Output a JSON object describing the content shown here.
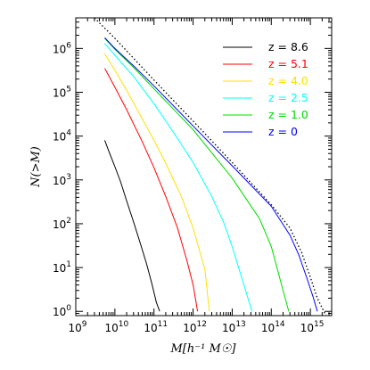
{
  "chart_data": {
    "type": "line",
    "xlabel": "M[h⁻¹ M☉]",
    "ylabel": "N(>M)",
    "x_scale": "log",
    "y_scale": "log",
    "xlim": [
      1000000000.0,
      3500000000000000.0
    ],
    "ylim": [
      0.8,
      5000000.0
    ],
    "x_ticks": [
      {
        "value": 1000000000.0,
        "base": "10",
        "exp": "9"
      },
      {
        "value": 10000000000.0,
        "base": "10",
        "exp": "10"
      },
      {
        "value": 100000000000.0,
        "base": "10",
        "exp": "11"
      },
      {
        "value": 1000000000000.0,
        "base": "10",
        "exp": "12"
      },
      {
        "value": 10000000000000.0,
        "base": "10",
        "exp": "13"
      },
      {
        "value": 100000000000000.0,
        "base": "10",
        "exp": "14"
      },
      {
        "value": 1000000000000000.0,
        "base": "10",
        "exp": "15"
      }
    ],
    "y_ticks": [
      {
        "value": 1,
        "base": "10",
        "exp": "0"
      },
      {
        "value": 10.0,
        "base": "10",
        "exp": "1"
      },
      {
        "value": 100.0,
        "base": "10",
        "exp": "2"
      },
      {
        "value": 1000.0,
        "base": "10",
        "exp": "3"
      },
      {
        "value": 10000.0,
        "base": "10",
        "exp": "4"
      },
      {
        "value": 100000.0,
        "base": "10",
        "exp": "5"
      },
      {
        "value": 1000000.0,
        "base": "10",
        "exp": "6"
      }
    ],
    "legend_position": "top-right",
    "series": [
      {
        "name": "z = 8.6",
        "color": "#000000",
        "style": "solid",
        "x": [
          5500000000.0,
          7000000000.0,
          10000000000.0,
          14000000000.0,
          20000000000.0,
          30000000000.0,
          45000000000.0,
          65000000000.0,
          90000000000.0,
          115000000000.0,
          140000000000.0
        ],
        "y": [
          8000,
          4500,
          2000,
          900,
          330,
          110,
          35,
          12,
          4,
          1.6,
          1
        ]
      },
      {
        "name": "z = 5.1",
        "color": "#ff0000",
        "style": "solid",
        "x": [
          5500000000.0,
          10000000000.0,
          20000000000.0,
          50000000000.0,
          100000000000.0,
          200000000000.0,
          400000000000.0,
          700000000000.0,
          1000000000000.0,
          1300000000000.0
        ],
        "y": [
          350000,
          130000,
          40000,
          7500,
          1900,
          420,
          80,
          14,
          4,
          1
        ]
      },
      {
        "name": "z = 4.0",
        "color": "#ffe000",
        "style": "solid",
        "x": [
          5500000000.0,
          10000000000.0,
          20000000000.0,
          50000000000.0,
          100000000000.0,
          200000000000.0,
          500000000000.0,
          1000000000000.0,
          2000000000000.0,
          2600000000000.0
        ],
        "y": [
          750000,
          320000,
          110000,
          25000,
          8000,
          2400,
          420,
          80,
          9,
          1
        ]
      },
      {
        "name": "z = 2.5",
        "color": "#00ffff",
        "style": "solid",
        "x": [
          5500000000.0,
          10000000000.0,
          30000000000.0,
          100000000000.0,
          300000000000.0,
          1000000000000.0,
          3000000000000.0,
          6000000000000.0,
          10000000000000.0,
          20000000000000.0,
          32000000000000.0
        ],
        "y": [
          1300000,
          700000,
          230000,
          55000,
          13000,
          2500,
          420,
          110,
          30,
          4,
          1
        ]
      },
      {
        "name": "z = 1.0",
        "color": "#00dd00",
        "style": "solid",
        "x": [
          5500000000.0,
          10000000000.0,
          30000000000.0,
          100000000000.0,
          1000000000000.0,
          10000000000000.0,
          50000000000000.0,
          100000000000000.0,
          200000000000000.0,
          280000000000000.0
        ],
        "y": [
          1700000,
          950000,
          370000,
          120000,
          14000,
          1100,
          130,
          30,
          3,
          1
        ]
      },
      {
        "name": "z = 0",
        "color": "#0000ff",
        "style": "solid",
        "x": [
          5500000000.0,
          10000000000.0,
          30000000000.0,
          100000000000.0,
          1000000000000.0,
          10000000000000.0,
          100000000000000.0,
          300000000000000.0,
          500000000000000.0,
          800000000000000.0,
          1200000000000000.0,
          1500000000000000.0
        ],
        "y": [
          1750000,
          1000000,
          400000,
          140000,
          17000,
          2100,
          250,
          55,
          20,
          6,
          2,
          1
        ]
      },
      {
        "name": "",
        "color": "#000000",
        "style": "dotted",
        "x": [
          3000000000.0,
          10000000000.0,
          100000000000.0,
          1000000000000.0,
          10000000000000.0,
          100000000000000.0,
          300000000000000.0,
          600000000000000.0,
          1000000000000000.0,
          1500000000000000.0,
          2500000000000000.0
        ],
        "y": [
          5000000.0,
          1700000.0,
          190000,
          22000,
          2500,
          270,
          80,
          22,
          6,
          2,
          0.8
        ]
      }
    ]
  }
}
